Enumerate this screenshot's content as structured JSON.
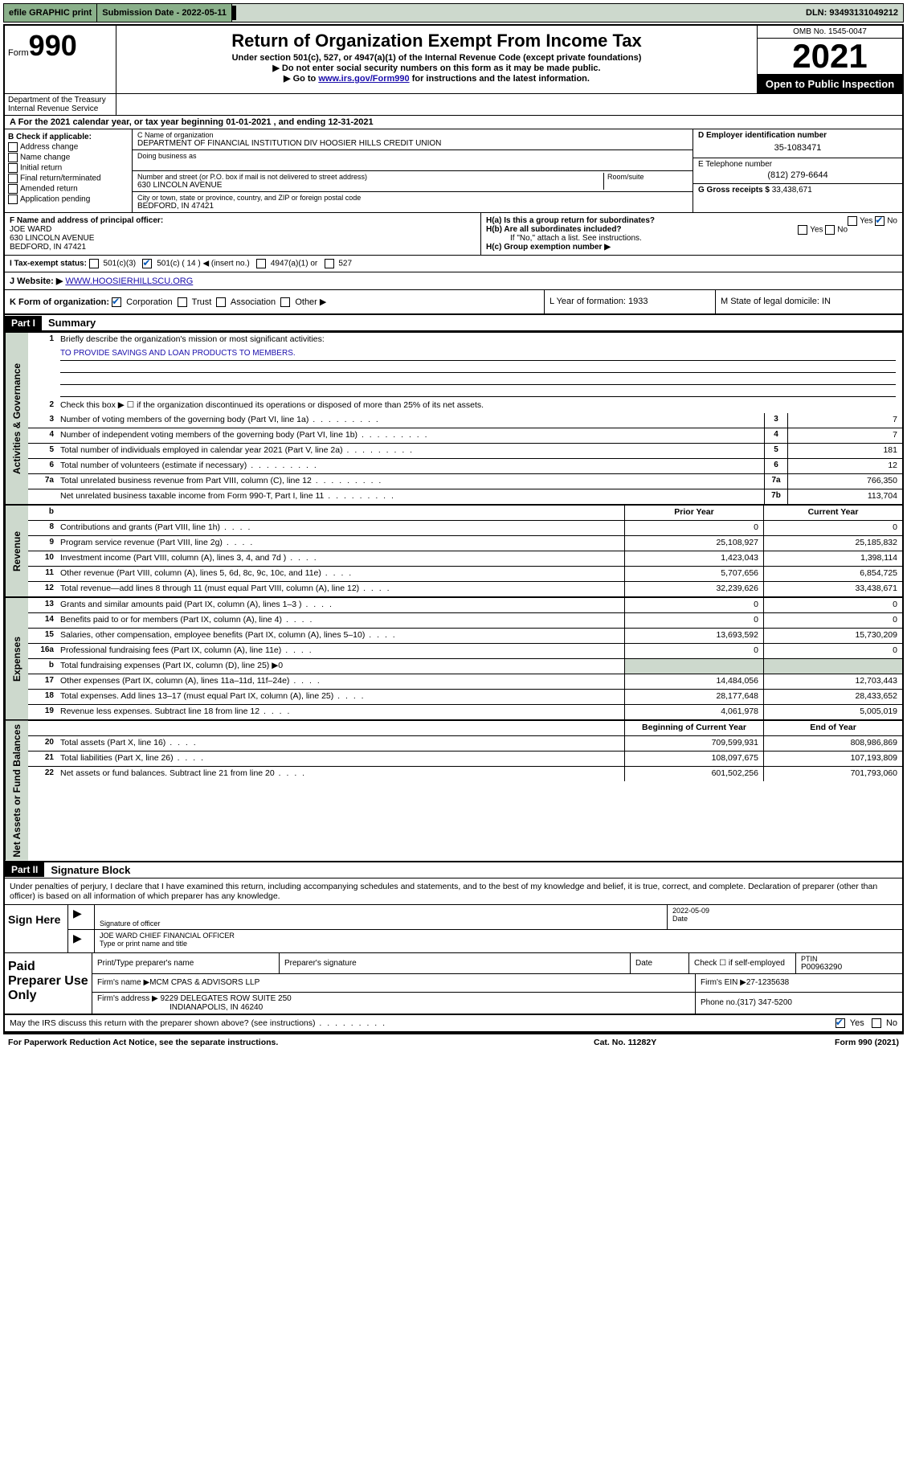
{
  "topbar": {
    "efile": "efile GRAPHIC print",
    "submission_label": "Submission Date - 2022-05-11",
    "dln": "DLN: 93493131049212"
  },
  "header": {
    "form_word": "Form",
    "form_number": "990",
    "title": "Return of Organization Exempt From Income Tax",
    "subtitle": "Under section 501(c), 527, or 4947(a)(1) of the Internal Revenue Code (except private foundations)",
    "note1": "▶ Do not enter social security numbers on this form as it may be made public.",
    "note2_pre": "▶ Go to ",
    "note2_link": "www.irs.gov/Form990",
    "note2_post": " for instructions and the latest information.",
    "omb": "OMB No. 1545-0047",
    "year": "2021",
    "open_public": "Open to Public Inspection",
    "dept": "Department of the Treasury Internal Revenue Service"
  },
  "lineA": "A For the 2021 calendar year, or tax year beginning 01-01-2021   , and ending 12-31-2021",
  "colB": {
    "header": "B Check if applicable:",
    "opts": [
      "Address change",
      "Name change",
      "Initial return",
      "Final return/terminated",
      "Amended return",
      "Application pending"
    ]
  },
  "colC": {
    "name_label": "C Name of organization",
    "name": "DEPARTMENT OF FINANCIAL INSTITUTION DIV HOOSIER HILLS CREDIT UNION",
    "dba_label": "Doing business as",
    "street_label": "Number and street (or P.O. box if mail is not delivered to street address)",
    "room_label": "Room/suite",
    "street": "630 LINCOLN AVENUE",
    "city_label": "City or town, state or province, country, and ZIP or foreign postal code",
    "city": "BEDFORD, IN  47421"
  },
  "colD": {
    "ein_label": "D Employer identification number",
    "ein": "35-1083471",
    "phone_label": "E Telephone number",
    "phone": "(812) 279-6644",
    "gross_label": "G Gross receipts $ ",
    "gross": "33,438,671"
  },
  "rowF": {
    "label": "F  Name and address of principal officer:",
    "name": "JOE WARD",
    "addr1": "630 LINCOLN AVENUE",
    "addr2": "BEDFORD, IN  47421",
    "ha": "H(a)  Is this a group return for subordinates?",
    "hb": "H(b)  Are all subordinates included?",
    "hb_note": "If \"No,\" attach a list. See instructions.",
    "hc": "H(c)  Group exemption number ▶",
    "yes": "Yes",
    "no": "No"
  },
  "tax_status": {
    "label": "I   Tax-exempt status:",
    "opt1": "501(c)(3)",
    "opt2": "501(c) ( 14 ) ◀ (insert no.)",
    "opt3": "4947(a)(1) or",
    "opt4": "527"
  },
  "website": {
    "label": "J   Website: ▶ ",
    "url": "WWW.HOOSIERHILLSCU.ORG"
  },
  "rowK": {
    "label": "K Form of organization:",
    "corp": "Corporation",
    "trust": "Trust",
    "assoc": "Association",
    "other": "Other ▶",
    "l": "L Year of formation: 1933",
    "m": "M State of legal domicile: IN"
  },
  "part1": {
    "header": "Part I",
    "title": "Summary",
    "q1": "Briefly describe the organization's mission or most significant activities:",
    "mission": "TO PROVIDE SAVINGS AND LOAN PRODUCTS TO MEMBERS.",
    "q2": "Check this box ▶ ☐  if the organization discontinued its operations or disposed of more than 25% of its net assets.",
    "sections": {
      "gov": "Activities & Governance",
      "rev": "Revenue",
      "exp": "Expenses",
      "net": "Net Assets or Fund Balances"
    },
    "rows": [
      {
        "n": "3",
        "d": "Number of voting members of the governing body (Part VI, line 1a)",
        "b": "3",
        "v": "7"
      },
      {
        "n": "4",
        "d": "Number of independent voting members of the governing body (Part VI, line 1b)",
        "b": "4",
        "v": "7"
      },
      {
        "n": "5",
        "d": "Total number of individuals employed in calendar year 2021 (Part V, line 2a)",
        "b": "5",
        "v": "181"
      },
      {
        "n": "6",
        "d": "Total number of volunteers (estimate if necessary)",
        "b": "6",
        "v": "12"
      },
      {
        "n": "7a",
        "d": "Total unrelated business revenue from Part VIII, column (C), line 12",
        "b": "7a",
        "v": "766,350"
      },
      {
        "n": "",
        "d": "Net unrelated business taxable income from Form 990-T, Part I, line 11",
        "b": "7b",
        "v": "113,704"
      }
    ],
    "col_prior": "Prior Year",
    "col_current": "Current Year",
    "revenue": [
      {
        "n": "8",
        "d": "Contributions and grants (Part VIII, line 1h)",
        "p": "0",
        "c": "0"
      },
      {
        "n": "9",
        "d": "Program service revenue (Part VIII, line 2g)",
        "p": "25,108,927",
        "c": "25,185,832"
      },
      {
        "n": "10",
        "d": "Investment income (Part VIII, column (A), lines 3, 4, and 7d )",
        "p": "1,423,043",
        "c": "1,398,114"
      },
      {
        "n": "11",
        "d": "Other revenue (Part VIII, column (A), lines 5, 6d, 8c, 9c, 10c, and 11e)",
        "p": "5,707,656",
        "c": "6,854,725"
      },
      {
        "n": "12",
        "d": "Total revenue—add lines 8 through 11 (must equal Part VIII, column (A), line 12)",
        "p": "32,239,626",
        "c": "33,438,671"
      }
    ],
    "expenses": [
      {
        "n": "13",
        "d": "Grants and similar amounts paid (Part IX, column (A), lines 1–3 )",
        "p": "0",
        "c": "0"
      },
      {
        "n": "14",
        "d": "Benefits paid to or for members (Part IX, column (A), line 4)",
        "p": "0",
        "c": "0"
      },
      {
        "n": "15",
        "d": "Salaries, other compensation, employee benefits (Part IX, column (A), lines 5–10)",
        "p": "13,693,592",
        "c": "15,730,209"
      },
      {
        "n": "16a",
        "d": "Professional fundraising fees (Part IX, column (A), line 11e)",
        "p": "0",
        "c": "0"
      },
      {
        "n": "b",
        "d": "Total fundraising expenses (Part IX, column (D), line 25) ▶0",
        "grey": true
      },
      {
        "n": "17",
        "d": "Other expenses (Part IX, column (A), lines 11a–11d, 11f–24e)",
        "p": "14,484,056",
        "c": "12,703,443"
      },
      {
        "n": "18",
        "d": "Total expenses. Add lines 13–17 (must equal Part IX, column (A), line 25)",
        "p": "28,177,648",
        "c": "28,433,652"
      },
      {
        "n": "19",
        "d": "Revenue less expenses. Subtract line 18 from line 12",
        "p": "4,061,978",
        "c": "5,005,019"
      }
    ],
    "col_begin": "Beginning of Current Year",
    "col_end": "End of Year",
    "netassets": [
      {
        "n": "20",
        "d": "Total assets (Part X, line 16)",
        "p": "709,599,931",
        "c": "808,986,869"
      },
      {
        "n": "21",
        "d": "Total liabilities (Part X, line 26)",
        "p": "108,097,675",
        "c": "107,193,809"
      },
      {
        "n": "22",
        "d": "Net assets or fund balances. Subtract line 21 from line 20",
        "p": "601,502,256",
        "c": "701,793,060"
      }
    ]
  },
  "part2": {
    "header": "Part II",
    "title": "Signature Block",
    "declaration": "Under penalties of perjury, I declare that I have examined this return, including accompanying schedules and statements, and to the best of my knowledge and belief, it is true, correct, and complete. Declaration of preparer (other than officer) is based on all information of which preparer has any knowledge.",
    "sign_here": "Sign Here",
    "sig_officer": "Signature of officer",
    "sig_date": "Date",
    "sig_date_val": "2022-05-09",
    "sig_name": "JOE WARD  CHIEF FINANCIAL OFFICER",
    "sig_name_label": "Type or print name and title",
    "paid": "Paid Preparer Use Only",
    "prep_name_label": "Print/Type preparer's name",
    "prep_sig_label": "Preparer's signature",
    "prep_date_label": "Date",
    "prep_check": "Check ☐ if self-employed",
    "ptin_label": "PTIN",
    "ptin": "P00963290",
    "firm_name_label": "Firm's name    ▶ ",
    "firm_name": "MCM CPAS & ADVISORS LLP",
    "firm_ein_label": "Firm's EIN ▶ ",
    "firm_ein": "27-1235638",
    "firm_addr_label": "Firm's address ▶ ",
    "firm_addr1": "9229 DELEGATES ROW SUITE 250",
    "firm_addr2": "INDIANAPOLIS, IN  46240",
    "firm_phone_label": "Phone no. ",
    "firm_phone": "(317) 347-5200",
    "discuss": "May the IRS discuss this return with the preparer shown above? (see instructions)",
    "yes": "Yes",
    "no": "No"
  },
  "footer": {
    "left": "For Paperwork Reduction Act Notice, see the separate instructions.",
    "mid": "Cat. No. 11282Y",
    "right": "Form 990 (2021)"
  }
}
